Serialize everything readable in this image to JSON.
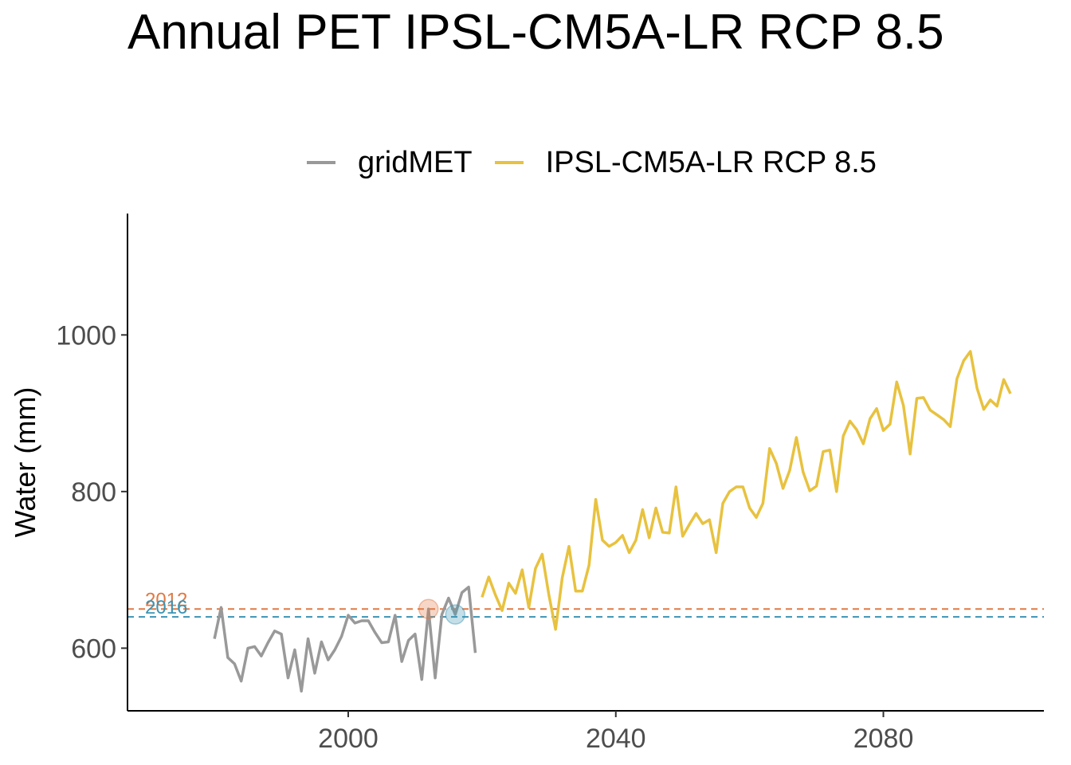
{
  "chart_data": {
    "type": "line",
    "title": "Annual PET IPSL-CM5A-LR RCP 8.5",
    "xlabel": "",
    "ylabel": "Water (mm)",
    "xlim": [
      1967,
      2104
    ],
    "ylim": [
      520,
      1155
    ],
    "x_ticks": [
      2000,
      2040,
      2080
    ],
    "y_ticks": [
      600,
      800,
      1000
    ],
    "grid": false,
    "legend_position": "top",
    "series": [
      {
        "name": "gridMET",
        "color": "#999999",
        "x": [
          1980,
          1981,
          1982,
          1983,
          1984,
          1985,
          1986,
          1987,
          1988,
          1989,
          1990,
          1991,
          1992,
          1993,
          1994,
          1995,
          1996,
          1997,
          1998,
          1999,
          2000,
          2001,
          2002,
          2003,
          2004,
          2005,
          2006,
          2007,
          2008,
          2009,
          2010,
          2011,
          2012,
          2013,
          2014,
          2015,
          2016,
          2017,
          2018,
          2019
        ],
        "y": [
          612,
          652,
          588,
          580,
          558,
          600,
          602,
          590,
          607,
          622,
          618,
          562,
          598,
          545,
          612,
          568,
          608,
          585,
          598,
          615,
          642,
          632,
          635,
          635,
          620,
          607,
          608,
          642,
          583,
          610,
          618,
          560,
          650,
          562,
          643,
          664,
          643,
          671,
          678,
          594
        ]
      },
      {
        "name": "IPSL-CM5A-LR RCP 8.5",
        "color": "#E8C23F",
        "x": [
          2020,
          2021,
          2022,
          2023,
          2024,
          2025,
          2026,
          2027,
          2028,
          2029,
          2030,
          2031,
          2032,
          2033,
          2034,
          2035,
          2036,
          2037,
          2038,
          2039,
          2040,
          2041,
          2042,
          2043,
          2044,
          2045,
          2046,
          2047,
          2048,
          2049,
          2050,
          2051,
          2052,
          2053,
          2054,
          2055,
          2056,
          2057,
          2058,
          2059,
          2060,
          2061,
          2062,
          2063,
          2064,
          2065,
          2066,
          2067,
          2068,
          2069,
          2070,
          2071,
          2072,
          2073,
          2074,
          2075,
          2076,
          2077,
          2078,
          2079,
          2080,
          2081,
          2082,
          2083,
          2084,
          2085,
          2086,
          2087,
          2088,
          2089,
          2090,
          2091,
          2092,
          2093,
          2094,
          2095,
          2096,
          2097,
          2098,
          2099
        ],
        "y": [
          665,
          691,
          668,
          648,
          683,
          670,
          700,
          652,
          702,
          720,
          668,
          624,
          690,
          730,
          673,
          673,
          706,
          790,
          738,
          730,
          735,
          744,
          722,
          738,
          777,
          741,
          779,
          748,
          747,
          806,
          743,
          758,
          772,
          759,
          764,
          722,
          785,
          800,
          806,
          806,
          779,
          767,
          785,
          855,
          836,
          804,
          827,
          869,
          825,
          801,
          807,
          851,
          853,
          800,
          871,
          890,
          879,
          861,
          893,
          906,
          878,
          886,
          940,
          910,
          848,
          919,
          920,
          904,
          898,
          892,
          883,
          944,
          967,
          979,
          932,
          905,
          917,
          909,
          943,
          925
        ]
      }
    ],
    "reference_lines": [
      {
        "label": "2012",
        "y": 650,
        "color": "#E07A45",
        "marker_x": 2012
      },
      {
        "label": "2016",
        "y": 640,
        "color": "#3B94B4",
        "marker_x": 2016
      }
    ]
  }
}
